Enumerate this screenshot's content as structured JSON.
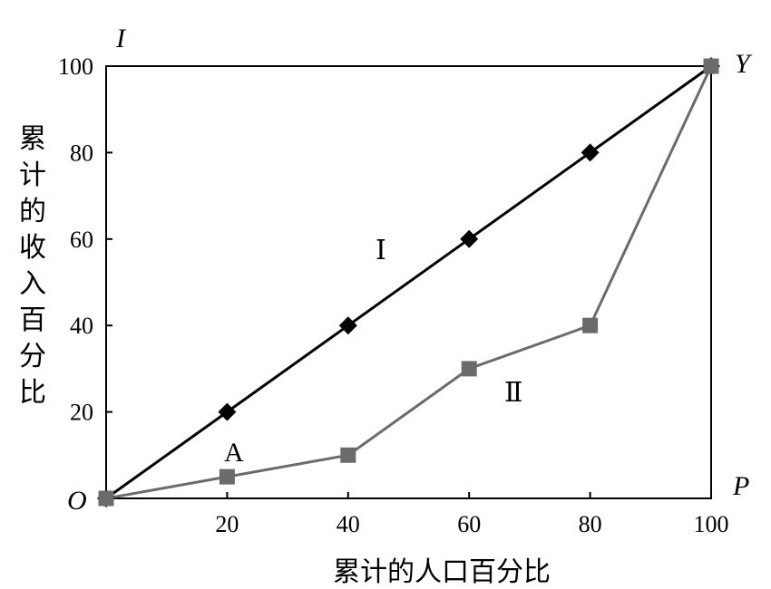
{
  "chart_data": {
    "type": "line",
    "xlabel": "累计的人口百分比",
    "ylabel": "累计的收入百分比",
    "xlim": [
      0,
      100
    ],
    "ylim": [
      0,
      100
    ],
    "x_ticks": [
      "20",
      "40",
      "60",
      "80",
      "100"
    ],
    "y_ticks": [
      "20",
      "40",
      "60",
      "80",
      "100"
    ],
    "grid": false,
    "series": [
      {
        "name": "Ⅰ",
        "marker": "diamond",
        "color": "#000000",
        "points": [
          [
            0,
            0
          ],
          [
            20,
            20
          ],
          [
            40,
            40
          ],
          [
            60,
            60
          ],
          [
            80,
            80
          ],
          [
            100,
            100
          ]
        ]
      },
      {
        "name": "Ⅱ",
        "marker": "square",
        "color": "#6b6b6b",
        "points": [
          [
            0,
            0
          ],
          [
            20,
            5
          ],
          [
            40,
            10
          ],
          [
            60,
            30
          ],
          [
            80,
            40
          ],
          [
            100,
            100
          ]
        ]
      }
    ],
    "annotations": [
      {
        "text": "I",
        "at": "top-left",
        "style": "italic"
      },
      {
        "text": "Y",
        "at": "top-right",
        "style": "italic"
      },
      {
        "text": "O",
        "at": "bottom-left",
        "style": "italic"
      },
      {
        "text": "P",
        "at": "bottom-right",
        "style": "italic"
      },
      {
        "text": "A",
        "x": 20,
        "y": 10
      }
    ]
  }
}
